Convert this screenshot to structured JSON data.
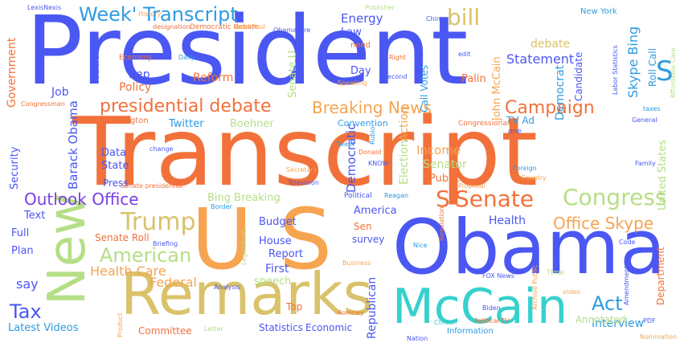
{
  "words": {
    "president": {
      "text": "President",
      "color": "#4a57f2"
    },
    "transcript": {
      "text": "Transcript",
      "color": "#f2713a"
    },
    "obama": {
      "text": "Obama",
      "color": "#4a57f2"
    },
    "us": {
      "text": "U S",
      "color": "#f6a450"
    },
    "remarks": {
      "text": "Remarks",
      "color": "#d9c26a"
    },
    "new": {
      "text": "New",
      "color": "#b6de86"
    },
    "mccain": {
      "text": "McCain",
      "color": "#36d1cd"
    },
    "week_transcript": {
      "text": "Week' Transcript",
      "color": "#2f9be0"
    },
    "bill": {
      "text": "bill",
      "color": "#d9c26a"
    },
    "presidential_debate": {
      "text": "presidential debate",
      "color": "#f2713a"
    },
    "breaking_news": {
      "text": "Breaking News",
      "color": "#f6a450"
    },
    "campaign": {
      "text": "Campaign",
      "color": "#f2713a"
    },
    "senate": {
      "text": "Senate",
      "color": "#f2713a"
    },
    "congress": {
      "text": "Congress",
      "color": "#b6de86"
    },
    "outlook_office": {
      "text": "Outlook Office",
      "color": "#7a3ee6"
    },
    "trump": {
      "text": "Trump",
      "color": "#d9c26a"
    },
    "american": {
      "text": "American",
      "color": "#b6de86"
    },
    "tax": {
      "text": "Tax",
      "color": "#4a57f2"
    },
    "act": {
      "text": "Act",
      "color": "#2f9be0"
    },
    "office_skype": {
      "text": "Office Skype",
      "color": "#f6a450"
    },
    "health_care": {
      "text": "Health Care",
      "color": "#f6a450"
    },
    "federal": {
      "text": "Federal",
      "color": "#f6a450"
    },
    "statement": {
      "text": "Statement",
      "color": "#4a57f2"
    },
    "skype_bing": {
      "text": "Skype Bing",
      "color": "#2f9be0"
    },
    "debate": {
      "text": "debate",
      "color": "#d9c26a"
    },
    "energy": {
      "text": "Energy",
      "color": "#4a57f2"
    },
    "law": {
      "text": "Law",
      "color": "#4a57f2"
    },
    "rep": {
      "text": "Rep",
      "color": "#4a57f2"
    },
    "policy": {
      "text": "Policy",
      "color": "#f2713a"
    },
    "reform": {
      "text": "Reform",
      "color": "#f2713a"
    },
    "national": {
      "text": "National",
      "color": "#4a57f2"
    },
    "job": {
      "text": "Job",
      "color": "#4a57f2"
    },
    "government": {
      "text": "Government",
      "color": "#f2713a"
    },
    "barack_obama": {
      "text": "Barack Obama",
      "color": "#4a57f2"
    },
    "security": {
      "text": "Security",
      "color": "#4a57f2"
    },
    "data": {
      "text": "Data",
      "color": "#4a57f2"
    },
    "state": {
      "text": "State",
      "color": "#4a57f2"
    },
    "press": {
      "text": "Press",
      "color": "#4a57f2"
    },
    "twitter": {
      "text": "Twitter",
      "color": "#2f9be0"
    },
    "boehner": {
      "text": "Boehner",
      "color": "#b6de86"
    },
    "convention": {
      "text": "Convention",
      "color": "#2f9be0"
    },
    "income": {
      "text": "Income",
      "color": "#f6a450"
    },
    "senator": {
      "text": "Senator",
      "color": "#b6de86"
    },
    "public": {
      "text": "Public",
      "color": "#f2713a"
    },
    "democratic": {
      "text": "Democratic",
      "color": "#4a57f2"
    },
    "election": {
      "text": "Election",
      "color": "#b6de86"
    },
    "america": {
      "text": "America",
      "color": "#4a57f2"
    },
    "health": {
      "text": "Health",
      "color": "#4a57f2"
    },
    "sen": {
      "text": "Sen",
      "color": "#f2713a"
    },
    "survey": {
      "text": "survey",
      "color": "#4a57f2"
    },
    "budget": {
      "text": "Budget",
      "color": "#4a57f2"
    },
    "house": {
      "text": "House",
      "color": "#4a57f2"
    },
    "report": {
      "text": "Report",
      "color": "#4a57f2"
    },
    "first": {
      "text": "First",
      "color": "#4a57f2"
    },
    "speech": {
      "text": "speech",
      "color": "#b6de86"
    },
    "senate_roll": {
      "text": "Senate Roll",
      "color": "#f2713a"
    },
    "bing_breaking": {
      "text": "Bing Breaking",
      "color": "#b6de86"
    },
    "text": {
      "text": "Text",
      "color": "#4a57f2"
    },
    "full": {
      "text": "Full",
      "color": "#4a57f2"
    },
    "plan": {
      "text": "Plan",
      "color": "#4a57f2"
    },
    "say": {
      "text": "say",
      "color": "#4a57f2"
    },
    "latest_videos": {
      "text": "Latest Videos",
      "color": "#2f9be0"
    },
    "committee": {
      "text": "Committee",
      "color": "#f2713a"
    },
    "statistics": {
      "text": "Statistics",
      "color": "#4a57f2"
    },
    "economic": {
      "text": "Economic",
      "color": "#4a57f2"
    },
    "top": {
      "text": "Top",
      "color": "#f2713a"
    },
    "republican": {
      "text": "Republican",
      "color": "#4a57f2"
    },
    "interview": {
      "text": "Interview",
      "color": "#2f9be0"
    },
    "department": {
      "text": "Department",
      "color": "#f2713a"
    },
    "united_states": {
      "text": "United States",
      "color": "#b6de86"
    },
    "s_right": {
      "text": "S",
      "color": "#2f9be0"
    },
    "s_mid": {
      "text": "S",
      "color": "#f2713a"
    },
    "action": {
      "text": "Action",
      "color": "#f6a450"
    },
    "tv_ad": {
      "text": "TV Ad",
      "color": "#2f9be0"
    },
    "palin": {
      "text": "Palin",
      "color": "#f2713a"
    },
    "democrat": {
      "text": "Democrat",
      "color": "#2f9be0"
    },
    "candidate": {
      "text": "Candidate",
      "color": "#4a57f2"
    },
    "john_mccain": {
      "text": "John McCain",
      "color": "#f6a450"
    },
    "call_votes": {
      "text": "Call Votes",
      "color": "#2f9be0"
    },
    "senate_u": {
      "text": "Senate U",
      "color": "#b6de86"
    },
    "day": {
      "text": "Day",
      "color": "#4a57f2"
    },
    "new_york": {
      "text": "New York",
      "color": "#2f9be0"
    },
    "roll_call": {
      "text": "Roll Call",
      "color": "#2f9be0"
    },
    "annotated": {
      "text": "Annotated",
      "color": "#b6de86"
    },
    "washington": {
      "text": "Washington",
      "color": "#f2713a"
    },
    "economy": {
      "text": "Economy",
      "color": "#f2713a"
    },
    "obamacare": {
      "text": "Obamacare",
      "color": "#4a57f2"
    },
    "democratic_debate": {
      "text": "Democratic debate",
      "color": "#f2713a"
    },
    "lexisnexis": {
      "text": "LexisNexis",
      "color": "#4a57f2"
    },
    "designation": {
      "text": "designation",
      "color": "#f2713a"
    },
    "congressional": {
      "text": "Congressional",
      "color": "#f2713a"
    },
    "political_tv": {
      "text": "Political TV",
      "color": "#f2713a"
    },
    "biden": {
      "text": "Biden",
      "color": "#4a57f2"
    },
    "nation": {
      "text": "Nation",
      "color": "#4a57f2"
    },
    "regulation": {
      "text": "Regulation",
      "color": "#f2713a"
    },
    "reagan": {
      "text": "Reagan",
      "color": "#2f9be0"
    },
    "political": {
      "text": "Political",
      "color": "#4a57f2"
    },
    "romney": {
      "text": "Romney",
      "color": "#f2713a"
    },
    "business": {
      "text": "Business",
      "color": "#f6a450"
    },
    "analysis": {
      "text": "Analysis",
      "color": "#4a57f2"
    },
    "information": {
      "text": "Information",
      "color": "#2f9be0"
    },
    "senate_presidential": {
      "text": "Senate presidential",
      "color": "#f2713a"
    },
    "letter": {
      "text": "Letter",
      "color": "#b6de86"
    },
    "border": {
      "text": "Border",
      "color": "#2f9be0"
    },
    "briefing": {
      "text": "Briefing",
      "color": "#4a57f2"
    },
    "secretary": {
      "text": "Secretary",
      "color": "#f6a450"
    },
    "television": {
      "text": "Television",
      "color": "#4a57f2"
    },
    "legislature": {
      "text": "Legislature",
      "color": "#b6de86"
    },
    "foreign": {
      "text": "Foreign",
      "color": "#2f9be0"
    },
    "country": {
      "text": "Country",
      "color": "#f6a450"
    },
    "family": {
      "text": "Family",
      "color": "#4a57f2"
    },
    "general": {
      "text": "General",
      "color": "#4a57f2"
    },
    "taxes": {
      "text": "taxes",
      "color": "#2f9be0"
    },
    "code": {
      "text": "Code",
      "color": "#4a57f2"
    },
    "rand_paul": {
      "text": "Rand Paul",
      "color": "#f6a450"
    },
    "history": {
      "text": "History",
      "color": "#f6a450"
    },
    "publisher": {
      "text": "Publisher",
      "color": "#b6de86"
    },
    "labor_statistics": {
      "text": "Labor Statistics",
      "color": "#4a57f2"
    },
    "affordable_care": {
      "text": "Affordable Care",
      "color": "#b6de86"
    },
    "speaking": {
      "text": "Speaking",
      "color": "#f6a450"
    },
    "daily": {
      "text": "Daily",
      "color": "#2f9be0"
    },
    "need": {
      "text": "need",
      "color": "#f2713a"
    },
    "right": {
      "text": "Right",
      "color": "#f2713a"
    },
    "second": {
      "text": "second",
      "color": "#4a57f2"
    },
    "china": {
      "text": "China",
      "color": "#4a57f2"
    },
    "proposal": {
      "text": "Proposal",
      "color": "#f6a450"
    },
    "edit": {
      "text": "edit",
      "color": "#4a57f2"
    },
    "time": {
      "text": "Time",
      "color": "#b6de86"
    },
    "fox_news": {
      "text": "FOX News",
      "color": "#4a57f2"
    },
    "congressman": {
      "text": "Congressman",
      "color": "#f2713a"
    },
    "change": {
      "text": "change",
      "color": "#4a57f2"
    },
    "tweet": {
      "text": "Tweet",
      "color": "#2f9be0"
    },
    "know": {
      "text": "KNOW",
      "color": "#4a57f2"
    },
    "donald": {
      "text": "Donald",
      "color": "#f2713a"
    },
    "rubio": {
      "text": "Rubio",
      "color": "#2f9be0"
    },
    "pdf": {
      "text": "PDF",
      "color": "#4a57f2"
    },
    "video": {
      "text": "video",
      "color": "#f6a450"
    },
    "amendment": {
      "text": "Amendment",
      "color": "#4a57f2"
    },
    "nomination": {
      "text": "Nomination",
      "color": "#f6a450"
    },
    "clinton": {
      "text": "Clinton",
      "color": "#36d1cd"
    },
    "product": {
      "text": "Product",
      "color": "#f6a450"
    },
    "archive_public": {
      "text": "Archive Public",
      "color": "#f6a450"
    },
    "one": {
      "text": "one",
      "color": "#4a57f2"
    },
    "nice": {
      "text": "Nice",
      "color": "#2f9be0"
    }
  }
}
